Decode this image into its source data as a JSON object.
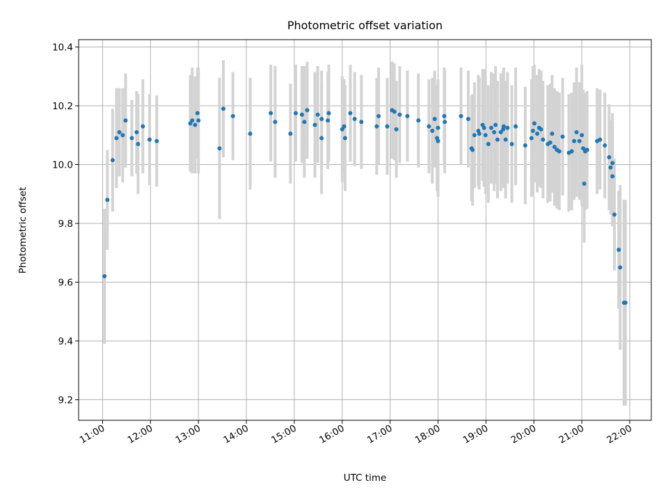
{
  "chart_data": {
    "type": "scatter",
    "title": "Photometric offset variation",
    "xlabel": "UTC time",
    "ylabel": "Photometric offset",
    "x_unit": "hours UTC",
    "xlim": [
      10.5,
      22.45
    ],
    "ylim": [
      9.13,
      10.425
    ],
    "grid": true,
    "xticks": [
      {
        "value": 11,
        "label": "11:00"
      },
      {
        "value": 12,
        "label": "12:00"
      },
      {
        "value": 13,
        "label": "13:00"
      },
      {
        "value": 14,
        "label": "14:00"
      },
      {
        "value": 15,
        "label": "15:00"
      },
      {
        "value": 16,
        "label": "16:00"
      },
      {
        "value": 17,
        "label": "17:00"
      },
      {
        "value": 18,
        "label": "18:00"
      },
      {
        "value": 19,
        "label": "19:00"
      },
      {
        "value": 20,
        "label": "20:00"
      },
      {
        "value": 21,
        "label": "21:00"
      },
      {
        "value": 22,
        "label": "22:00"
      }
    ],
    "yticks": [
      {
        "value": 9.2,
        "label": "9.2"
      },
      {
        "value": 9.4,
        "label": "9.4"
      },
      {
        "value": 9.6,
        "label": "9.6"
      },
      {
        "value": 9.8,
        "label": "9.8"
      },
      {
        "value": 10.0,
        "label": "10.0"
      },
      {
        "value": 10.2,
        "label": "10.2"
      },
      {
        "value": 10.4,
        "label": "10.4"
      }
    ],
    "point_color": "#1f77b4",
    "errorbar_color": "#d3d3d3",
    "points": [
      [
        11.04,
        9.62,
        0.23
      ],
      [
        11.1,
        9.88,
        0.17
      ],
      [
        11.21,
        10.015,
        0.175
      ],
      [
        11.29,
        10.09,
        0.17
      ],
      [
        11.35,
        10.11,
        0.15
      ],
      [
        11.42,
        10.1,
        0.16
      ],
      [
        11.48,
        10.15,
        0.16
      ],
      [
        11.61,
        10.09,
        0.13
      ],
      [
        11.71,
        10.11,
        0.14
      ],
      [
        11.74,
        10.07,
        0.17
      ],
      [
        11.84,
        10.13,
        0.16
      ],
      [
        11.98,
        10.085,
        0.155
      ],
      [
        12.13,
        10.08,
        0.155
      ],
      [
        12.83,
        10.14,
        0.165
      ],
      [
        12.87,
        10.15,
        0.18
      ],
      [
        12.93,
        10.135,
        0.165
      ],
      [
        12.98,
        10.175,
        0.155
      ],
      [
        13.0,
        10.15,
        0.18
      ],
      [
        13.44,
        10.055,
        0.24
      ],
      [
        13.52,
        10.19,
        0.165
      ],
      [
        13.72,
        10.165,
        0.15
      ],
      [
        14.08,
        10.105,
        0.19
      ],
      [
        14.51,
        10.175,
        0.165
      ],
      [
        14.6,
        10.145,
        0.19
      ],
      [
        14.92,
        10.105,
        0.17
      ],
      [
        15.03,
        10.175,
        0.165
      ],
      [
        15.16,
        10.17,
        0.165
      ],
      [
        15.21,
        10.145,
        0.19
      ],
      [
        15.27,
        10.185,
        0.165
      ],
      [
        15.43,
        10.135,
        0.18
      ],
      [
        15.49,
        10.17,
        0.165
      ],
      [
        15.57,
        10.09,
        0.19
      ],
      [
        15.57,
        10.155,
        0.165
      ],
      [
        15.7,
        10.15,
        0.165
      ],
      [
        15.72,
        10.175,
        0.165
      ],
      [
        16.0,
        10.12,
        0.18
      ],
      [
        16.06,
        10.09,
        0.18
      ],
      [
        16.04,
        10.13,
        0.16
      ],
      [
        16.17,
        10.175,
        0.165
      ],
      [
        16.26,
        10.155,
        0.16
      ],
      [
        16.4,
        10.145,
        0.16
      ],
      [
        16.72,
        10.13,
        0.165
      ],
      [
        16.76,
        10.165,
        0.165
      ],
      [
        16.94,
        10.13,
        0.165
      ],
      [
        17.04,
        10.185,
        0.165
      ],
      [
        17.09,
        10.18,
        0.165
      ],
      [
        17.13,
        10.12,
        0.165
      ],
      [
        17.2,
        10.17,
        0.165
      ],
      [
        17.36,
        10.165,
        0.155
      ],
      [
        17.59,
        10.15,
        0.16
      ],
      [
        17.81,
        10.13,
        0.16
      ],
      [
        17.88,
        10.115,
        0.18
      ],
      [
        17.93,
        10.155,
        0.165
      ],
      [
        17.98,
        10.09,
        0.18
      ],
      [
        18.0,
        10.125,
        0.165
      ],
      [
        18.0,
        10.08,
        0.19
      ],
      [
        18.13,
        10.165,
        0.165
      ],
      [
        18.14,
        10.145,
        0.175
      ],
      [
        18.48,
        10.165,
        0.165
      ],
      [
        18.63,
        10.155,
        0.165
      ],
      [
        18.7,
        10.055,
        0.18
      ],
      [
        18.72,
        10.05,
        0.19
      ],
      [
        18.76,
        10.1,
        0.18
      ],
      [
        18.84,
        10.115,
        0.19
      ],
      [
        18.86,
        10.105,
        0.19
      ],
      [
        18.93,
        10.135,
        0.19
      ],
      [
        18.96,
        10.125,
        0.2
      ],
      [
        18.99,
        10.1,
        0.2
      ],
      [
        19.05,
        10.07,
        0.2
      ],
      [
        19.11,
        10.125,
        0.19
      ],
      [
        19.17,
        10.11,
        0.2
      ],
      [
        19.2,
        10.135,
        0.2
      ],
      [
        19.24,
        10.085,
        0.2
      ],
      [
        19.31,
        10.11,
        0.2
      ],
      [
        19.36,
        10.12,
        0.2
      ],
      [
        19.37,
        10.13,
        0.2
      ],
      [
        19.41,
        10.085,
        0.2
      ],
      [
        19.45,
        10.125,
        0.19
      ],
      [
        19.54,
        10.07,
        0.2
      ],
      [
        19.62,
        10.13,
        0.2
      ],
      [
        19.82,
        10.065,
        0.2
      ],
      [
        19.95,
        10.09,
        0.2
      ],
      [
        19.98,
        10.115,
        0.22
      ],
      [
        20.01,
        10.14,
        0.2
      ],
      [
        20.07,
        10.105,
        0.2
      ],
      [
        20.11,
        10.125,
        0.2
      ],
      [
        20.15,
        10.12,
        0.2
      ],
      [
        20.19,
        10.085,
        0.2
      ],
      [
        20.29,
        10.07,
        0.2
      ],
      [
        20.34,
        10.075,
        0.2
      ],
      [
        20.38,
        10.105,
        0.2
      ],
      [
        20.43,
        10.06,
        0.2
      ],
      [
        20.48,
        10.05,
        0.2
      ],
      [
        20.53,
        10.045,
        0.2
      ],
      [
        20.6,
        10.095,
        0.2
      ],
      [
        20.73,
        10.04,
        0.2
      ],
      [
        20.79,
        10.045,
        0.2
      ],
      [
        20.84,
        10.08,
        0.2
      ],
      [
        20.89,
        10.11,
        0.22
      ],
      [
        20.95,
        10.08,
        0.2
      ],
      [
        21.0,
        10.1,
        0.24
      ],
      [
        21.03,
        10.055,
        0.2
      ],
      [
        21.05,
        9.935,
        0.2
      ],
      [
        21.07,
        10.045,
        0.2
      ],
      [
        21.11,
        10.05,
        0.2
      ],
      [
        21.32,
        10.08,
        0.18
      ],
      [
        21.38,
        10.085,
        0.17
      ],
      [
        21.48,
        10.065,
        0.18
      ],
      [
        21.57,
        10.025,
        0.18
      ],
      [
        21.6,
        9.99,
        0.16
      ],
      [
        21.64,
        10.005,
        0.17
      ],
      [
        21.64,
        9.96,
        0.17
      ],
      [
        21.68,
        9.83,
        0.19
      ],
      [
        21.77,
        9.71,
        0.2
      ],
      [
        21.8,
        9.65,
        0.28
      ],
      [
        21.88,
        9.53,
        0.35
      ],
      [
        21.91,
        9.53,
        0.35
      ]
    ]
  }
}
